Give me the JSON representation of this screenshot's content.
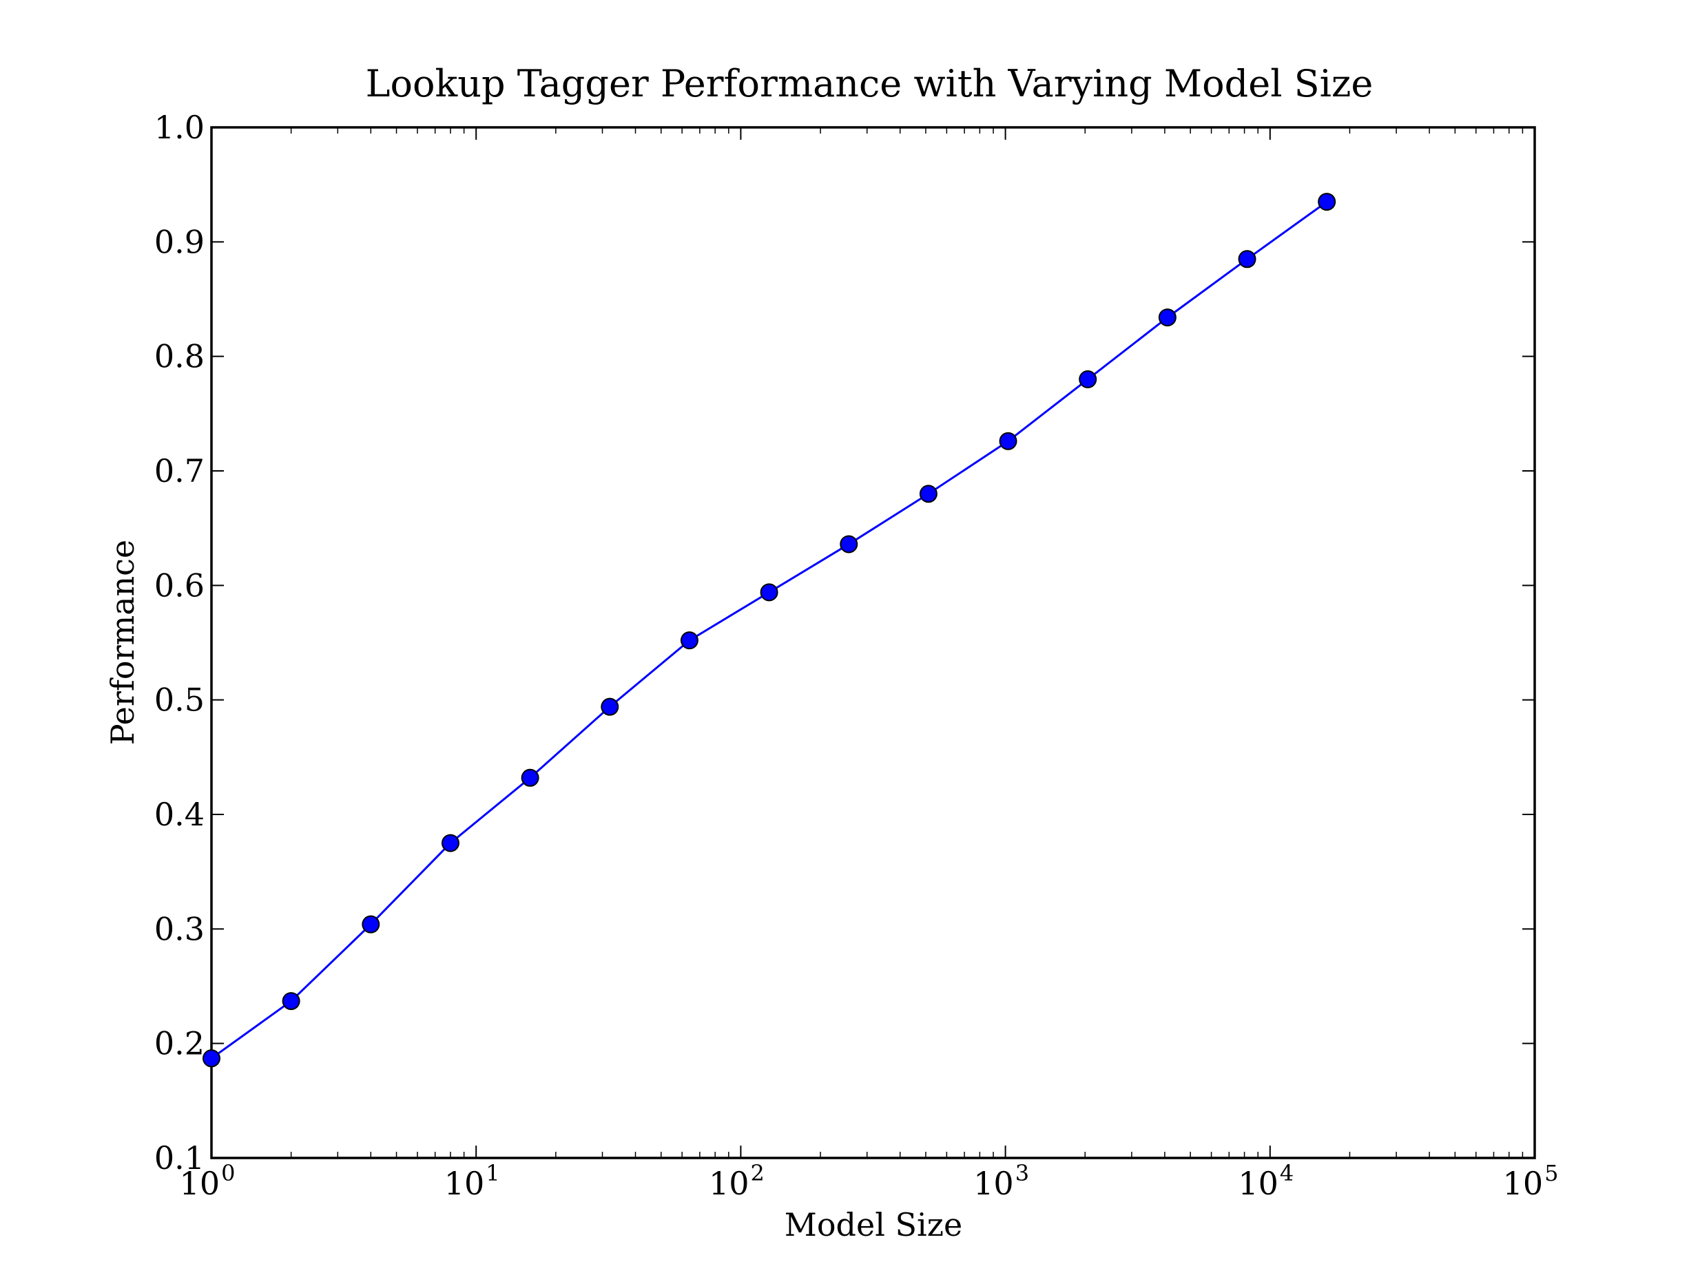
{
  "chart_data": {
    "type": "line",
    "title": "Lookup Tagger Performance with Varying Model Size",
    "xlabel": "Model Size",
    "ylabel": "Performance",
    "x_scale": "log",
    "xlim": [
      1,
      100000
    ],
    "ylim": [
      0.1,
      1.0
    ],
    "grid": false,
    "x_ticks": [
      {
        "value": 1,
        "base": "10",
        "exp": "0"
      },
      {
        "value": 10,
        "base": "10",
        "exp": "1"
      },
      {
        "value": 100,
        "base": "10",
        "exp": "2"
      },
      {
        "value": 1000,
        "base": "10",
        "exp": "3"
      },
      {
        "value": 10000,
        "base": "10",
        "exp": "4"
      },
      {
        "value": 100000,
        "base": "10",
        "exp": "5"
      }
    ],
    "y_ticks": [
      {
        "value": 0.1,
        "label": "0.1"
      },
      {
        "value": 0.2,
        "label": "0.2"
      },
      {
        "value": 0.3,
        "label": "0.3"
      },
      {
        "value": 0.4,
        "label": "0.4"
      },
      {
        "value": 0.5,
        "label": "0.5"
      },
      {
        "value": 0.6,
        "label": "0.6"
      },
      {
        "value": 0.7,
        "label": "0.7"
      },
      {
        "value": 0.8,
        "label": "0.8"
      },
      {
        "value": 0.9,
        "label": "0.9"
      },
      {
        "value": 1.0,
        "label": "1.0"
      }
    ],
    "series": [
      {
        "color": "#0000ff",
        "marker": "circle",
        "x": [
          1,
          2,
          4,
          8,
          16,
          32,
          64,
          128,
          256,
          512,
          1024,
          2048,
          4096,
          8192,
          16384
        ],
        "y": [
          0.187,
          0.237,
          0.304,
          0.375,
          0.432,
          0.494,
          0.552,
          0.594,
          0.636,
          0.68,
          0.726,
          0.78,
          0.834,
          0.885,
          0.935
        ]
      }
    ]
  }
}
